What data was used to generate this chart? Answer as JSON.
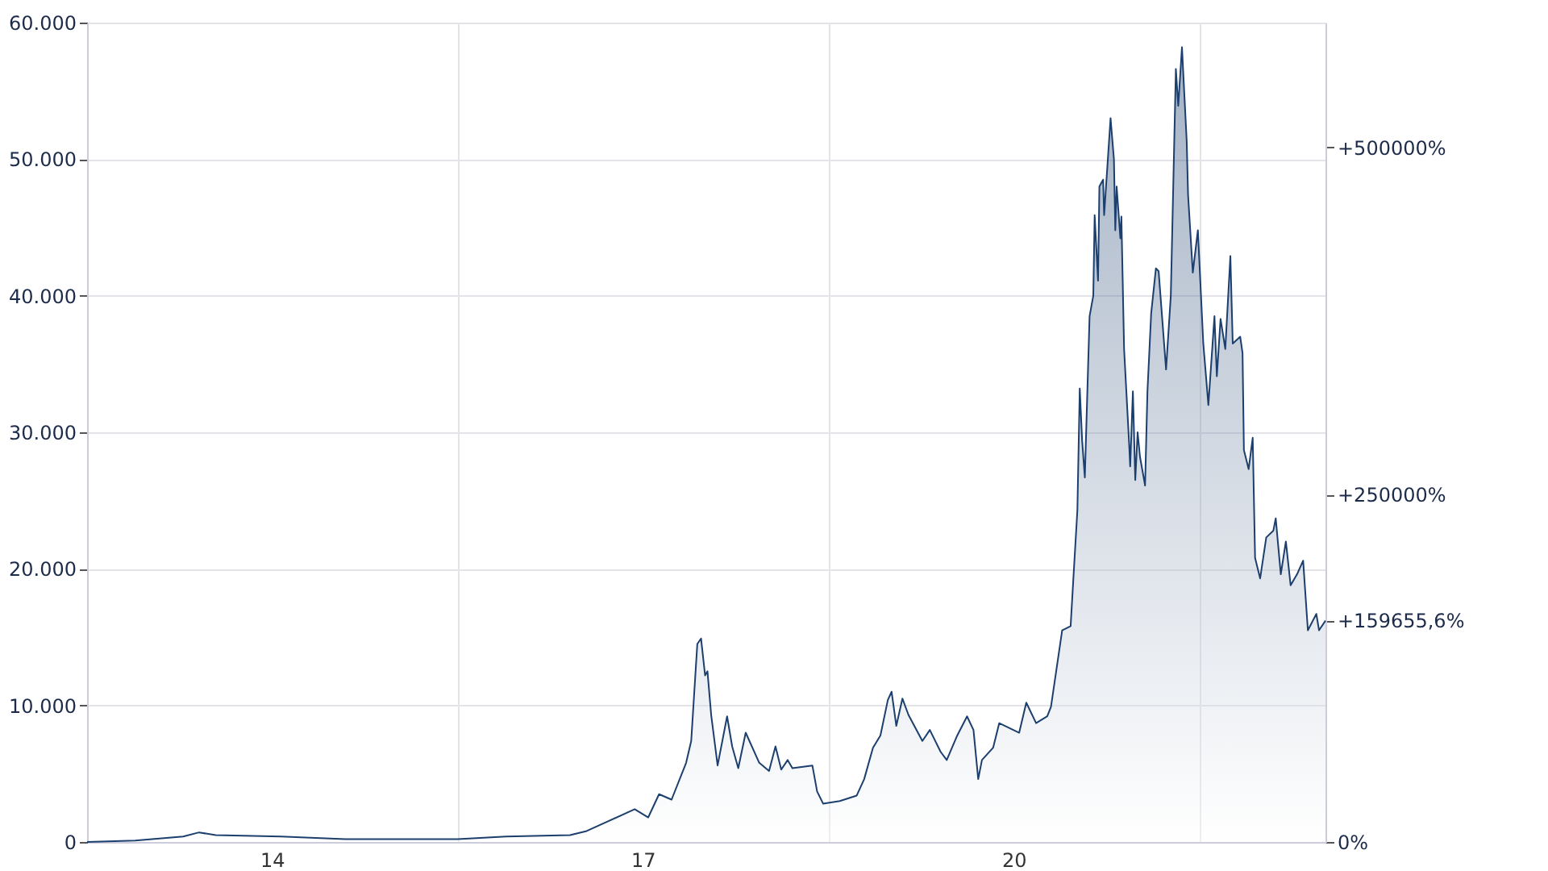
{
  "chart_data": {
    "type": "area",
    "grid": true,
    "xlim": [
      "2013-01-01",
      "2023-01-08"
    ],
    "ylim": [
      0,
      60000
    ],
    "xticks": [
      {
        "value": "2014-07-01",
        "label": "14"
      },
      {
        "value": "2016-01-01",
        "label": null
      },
      {
        "value": "2017-07-01",
        "label": "17"
      },
      {
        "value": "2019-01-01",
        "label": null
      },
      {
        "value": "2020-07-01",
        "label": "20"
      },
      {
        "value": "2022-01-01",
        "label": null
      }
    ],
    "yticks": [
      {
        "value": 0,
        "label": "0"
      },
      {
        "value": 10000,
        "label": "10.000"
      },
      {
        "value": 20000,
        "label": "20.000"
      },
      {
        "value": 30000,
        "label": "30.000"
      },
      {
        "value": 40000,
        "label": "40.000"
      },
      {
        "value": 50000,
        "label": "50.000"
      },
      {
        "value": 60000,
        "label": "60.000"
      }
    ],
    "y2lim": [
      0,
      590000
    ],
    "y2ticks": [
      {
        "value": 0,
        "label": "0%"
      },
      {
        "value": 159655.6,
        "label": "+159655,6%"
      },
      {
        "value": 250000,
        "label": "+250000%"
      },
      {
        "value": 500000,
        "label": "+500000%"
      }
    ],
    "series": [
      {
        "color": "#1c3f6e",
        "x": [
          "2013-01-01",
          "2013-05-23",
          "2013-10-12",
          "2013-11-28",
          "2014-01-16",
          "2014-07-28",
          "2015-02-03",
          "2016-01-01",
          "2016-05-23",
          "2016-11-28",
          "2017-01-16",
          "2017-06-07",
          "2017-07-17",
          "2017-08-18",
          "2017-09-24",
          "2017-11-06",
          "2017-11-21",
          "2017-12-09",
          "2017-12-20",
          "2018-01-01",
          "2018-01-08",
          "2018-01-19",
          "2018-02-07",
          "2018-03-07",
          "2018-03-22",
          "2018-04-09",
          "2018-05-01",
          "2018-06-10",
          "2018-07-09",
          "2018-07-28",
          "2018-08-14",
          "2018-09-02",
          "2018-09-16",
          "2018-11-14",
          "2018-11-28",
          "2018-12-16",
          "2019-02-03",
          "2019-03-25",
          "2019-04-16",
          "2019-05-12",
          "2019-06-03",
          "2019-06-25",
          "2019-07-06",
          "2019-07-20",
          "2019-08-07",
          "2019-08-25",
          "2019-10-05",
          "2019-10-27",
          "2019-11-28",
          "2019-12-16",
          "2020-01-16",
          "2020-02-14",
          "2020-03-04",
          "2020-03-18",
          "2020-03-29",
          "2020-05-01",
          "2020-05-19",
          "2020-07-17",
          "2020-08-07",
          "2020-09-05",
          "2020-10-08",
          "2020-10-19",
          "2020-11-21",
          "2020-12-16",
          "2020-12-23",
          "2021-01-05",
          "2021-01-12",
          "2021-01-19",
          "2021-01-27",
          "2021-02-10",
          "2021-02-21",
          "2021-02-25",
          "2021-03-07",
          "2021-03-11",
          "2021-03-22",
          "2021-03-25",
          "2021-04-05",
          "2021-04-13",
          "2021-04-23",
          "2021-04-27",
          "2021-05-01",
          "2021-05-12",
          "2021-05-15",
          "2021-05-23",
          "2021-06-07",
          "2021-06-10",
          "2021-06-18",
          "2021-06-25",
          "2021-07-02",
          "2021-07-09",
          "2021-07-24",
          "2021-07-31",
          "2021-08-11",
          "2021-08-25",
          "2021-09-02",
          "2021-09-24",
          "2021-10-08",
          "2021-10-23",
          "2021-10-30",
          "2021-11-10",
          "2021-11-24",
          "2021-11-28",
          "2021-12-12",
          "2021-12-27",
          "2022-01-12",
          "2022-01-27",
          "2022-02-14",
          "2022-02-21",
          "2022-03-04",
          "2022-03-18",
          "2022-04-02",
          "2022-04-09",
          "2022-05-01",
          "2022-05-08",
          "2022-05-12",
          "2022-05-26",
          "2022-06-07",
          "2022-06-14",
          "2022-06-29",
          "2022-07-17",
          "2022-08-07",
          "2022-08-14",
          "2022-08-29",
          "2022-09-13",
          "2022-09-27",
          "2022-10-16",
          "2022-11-03",
          "2022-11-17",
          "2022-12-12",
          "2022-12-20",
          "2023-01-08"
        ],
        "values": [
          0,
          100,
          400,
          700,
          500,
          400,
          200,
          200,
          400,
          500,
          800,
          2400,
          1800,
          3500,
          3100,
          5800,
          7400,
          14500,
          14900,
          12200,
          12500,
          9300,
          5600,
          9200,
          7000,
          5400,
          8000,
          5800,
          5200,
          7000,
          5300,
          6000,
          5400,
          5600,
          3700,
          2800,
          3000,
          3400,
          4600,
          6900,
          7800,
          10400,
          11000,
          8500,
          10500,
          9300,
          7400,
          8200,
          6600,
          6000,
          7800,
          9200,
          8200,
          4600,
          6000,
          6900,
          8700,
          8000,
          10200,
          8700,
          9200,
          9900,
          15500,
          15800,
          18800,
          24300,
          33200,
          29400,
          26700,
          38500,
          40000,
          45900,
          41100,
          48000,
          48500,
          45900,
          50000,
          53000,
          50000,
          44800,
          48000,
          44200,
          45800,
          36100,
          29100,
          27500,
          33000,
          26500,
          30000,
          28200,
          26100,
          33000,
          38700,
          42000,
          41800,
          34600,
          40000,
          56600,
          53900,
          58200,
          51300,
          47400,
          41700,
          44800,
          36500,
          32000,
          38500,
          34100,
          38300,
          36100,
          42900,
          36500,
          37000,
          35800,
          28700,
          27300,
          29600,
          20800,
          19300,
          22300,
          22800,
          23700,
          19600,
          22000,
          18800,
          19600,
          20600,
          15500,
          16700,
          15500,
          16200
        ]
      }
    ]
  }
}
